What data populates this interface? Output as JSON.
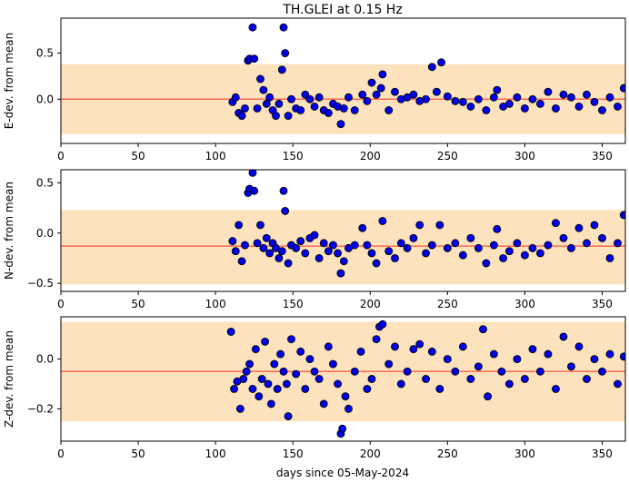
{
  "title": "TH.GLEI at 0.15 Hz",
  "xlabel": "days since 05-May-2024",
  "colors": {
    "band": "#fde3bd",
    "mean_line": "#ff6a55",
    "marker_fill": "#0000ee",
    "marker_edge": "#000000"
  },
  "chart_data": [
    {
      "type": "scatter",
      "ylabel": "E-dev. from mean",
      "xlim": [
        0,
        365
      ],
      "ylim": [
        -0.48,
        0.88
      ],
      "xticks": [
        "0",
        "50",
        "100",
        "150",
        "200",
        "250",
        "300",
        "350"
      ],
      "yticks": [
        "0.5",
        "0.0"
      ],
      "mean": 0.0,
      "band": [
        -0.38,
        0.38
      ],
      "series": [
        {
          "x": [
            111,
            113,
            115,
            117,
            119,
            121,
            122,
            124,
            125,
            127,
            129,
            131,
            133,
            135,
            137,
            139,
            141,
            143,
            144,
            145,
            147,
            149,
            152,
            155,
            158,
            161,
            164,
            167,
            170,
            173,
            176,
            179,
            181,
            183,
            186,
            190,
            195,
            198,
            201,
            204,
            207,
            208,
            212,
            216,
            220,
            224,
            228,
            232,
            236,
            240,
            243,
            246,
            250,
            255,
            260,
            265,
            270,
            275,
            280,
            282,
            286,
            290,
            295,
            300,
            305,
            310,
            315,
            320,
            325,
            330,
            335,
            340,
            345,
            350,
            355,
            360,
            364
          ],
          "y": [
            -0.03,
            0.02,
            -0.15,
            -0.18,
            -0.1,
            0.42,
            0.44,
            0.78,
            0.44,
            -0.1,
            0.22,
            0.1,
            -0.05,
            0.02,
            -0.12,
            -0.18,
            -0.05,
            0.32,
            0.78,
            0.5,
            -0.18,
            0.0,
            -0.1,
            -0.12,
            0.05,
            0.0,
            -0.08,
            0.02,
            -0.12,
            -0.15,
            -0.05,
            -0.08,
            -0.27,
            -0.1,
            0.02,
            -0.12,
            0.05,
            -0.02,
            0.18,
            0.05,
            0.12,
            0.27,
            -0.12,
            0.08,
            0.0,
            0.02,
            0.05,
            -0.02,
            0.0,
            0.35,
            0.08,
            0.4,
            0.03,
            -0.02,
            -0.03,
            -0.08,
            0.0,
            -0.12,
            0.02,
            0.1,
            -0.08,
            -0.05,
            0.02,
            -0.1,
            0.0,
            -0.05,
            0.08,
            -0.1,
            0.05,
            0.02,
            -0.08,
            0.05,
            -0.03,
            -0.12,
            0.02,
            -0.08,
            0.12
          ]
        }
      ]
    },
    {
      "type": "scatter",
      "ylabel": "N-dev. from mean",
      "xlim": [
        0,
        365
      ],
      "ylim": [
        -0.58,
        0.63
      ],
      "xticks": [
        "0",
        "50",
        "100",
        "150",
        "200",
        "250",
        "300",
        "350"
      ],
      "yticks": [
        "0.5",
        "0.0",
        "−0.5"
      ],
      "mean": -0.13,
      "band": [
        -0.51,
        0.23
      ],
      "series": [
        {
          "x": [
            111,
            113,
            115,
            117,
            119,
            121,
            122,
            124,
            125,
            127,
            129,
            131,
            133,
            135,
            137,
            139,
            141,
            143,
            144,
            145,
            147,
            149,
            152,
            155,
            158,
            161,
            164,
            167,
            170,
            173,
            176,
            179,
            181,
            183,
            186,
            190,
            195,
            198,
            201,
            204,
            208,
            212,
            216,
            220,
            224,
            228,
            232,
            236,
            240,
            245,
            250,
            255,
            260,
            265,
            270,
            275,
            280,
            282,
            286,
            290,
            295,
            300,
            305,
            310,
            315,
            320,
            325,
            330,
            335,
            340,
            345,
            350,
            355,
            360,
            364
          ],
          "y": [
            -0.08,
            -0.18,
            0.08,
            -0.28,
            -0.12,
            0.4,
            0.44,
            0.6,
            0.42,
            -0.1,
            0.08,
            -0.15,
            -0.05,
            -0.2,
            -0.1,
            -0.15,
            -0.25,
            -0.18,
            0.42,
            0.22,
            -0.3,
            -0.12,
            -0.15,
            -0.08,
            -0.2,
            -0.05,
            -0.02,
            -0.25,
            -0.1,
            -0.18,
            -0.12,
            -0.2,
            -0.4,
            -0.28,
            -0.15,
            -0.12,
            0.05,
            -0.12,
            -0.2,
            -0.3,
            0.12,
            -0.18,
            -0.25,
            -0.1,
            -0.15,
            -0.05,
            0.08,
            -0.2,
            -0.12,
            0.08,
            -0.15,
            -0.1,
            -0.22,
            -0.05,
            -0.15,
            -0.3,
            -0.12,
            0.04,
            -0.25,
            -0.18,
            -0.1,
            -0.22,
            -0.15,
            -0.2,
            -0.12,
            0.1,
            -0.05,
            -0.15,
            0.05,
            -0.1,
            0.08,
            -0.05,
            -0.25,
            -0.1,
            0.18
          ]
        }
      ]
    },
    {
      "type": "scatter",
      "ylabel": "Z-dev. from mean",
      "xlim": [
        0,
        365
      ],
      "ylim": [
        -0.33,
        0.17
      ],
      "xticks": [
        "0",
        "50",
        "100",
        "150",
        "200",
        "250",
        "300",
        "350"
      ],
      "yticks": [
        "0.0",
        "−0.2"
      ],
      "mean": -0.05,
      "band": [
        -0.25,
        0.15
      ],
      "series": [
        {
          "x": [
            110,
            112,
            114,
            116,
            118,
            120,
            122,
            124,
            126,
            128,
            130,
            132,
            134,
            136,
            138,
            140,
            142,
            144,
            146,
            147,
            149,
            152,
            155,
            158,
            161,
            164,
            167,
            170,
            173,
            176,
            179,
            181,
            182,
            184,
            186,
            190,
            194,
            198,
            201,
            204,
            206,
            208,
            212,
            216,
            220,
            224,
            228,
            232,
            236,
            240,
            245,
            250,
            255,
            260,
            265,
            270,
            273,
            276,
            280,
            285,
            290,
            295,
            300,
            305,
            310,
            315,
            320,
            325,
            330,
            335,
            340,
            345,
            350,
            355,
            360,
            364
          ],
          "y": [
            0.11,
            -0.12,
            -0.09,
            -0.2,
            -0.08,
            -0.05,
            -0.02,
            -0.12,
            0.04,
            -0.15,
            -0.08,
            0.07,
            -0.1,
            -0.18,
            -0.02,
            -0.12,
            0.02,
            -0.05,
            -0.1,
            -0.23,
            0.08,
            -0.06,
            0.03,
            -0.12,
            0.0,
            -0.05,
            -0.08,
            -0.18,
            0.05,
            -0.02,
            -0.1,
            -0.3,
            -0.28,
            -0.15,
            -0.2,
            -0.05,
            0.03,
            -0.12,
            -0.08,
            0.08,
            0.13,
            0.14,
            -0.02,
            0.05,
            -0.1,
            -0.05,
            0.04,
            0.06,
            -0.08,
            0.03,
            -0.12,
            0.0,
            -0.05,
            0.05,
            -0.08,
            -0.03,
            0.12,
            -0.15,
            0.02,
            -0.05,
            -0.1,
            0.0,
            -0.08,
            0.04,
            -0.05,
            0.02,
            -0.12,
            0.09,
            -0.03,
            0.05,
            -0.08,
            0.0,
            -0.05,
            0.02,
            -0.1,
            0.01
          ]
        }
      ]
    }
  ]
}
